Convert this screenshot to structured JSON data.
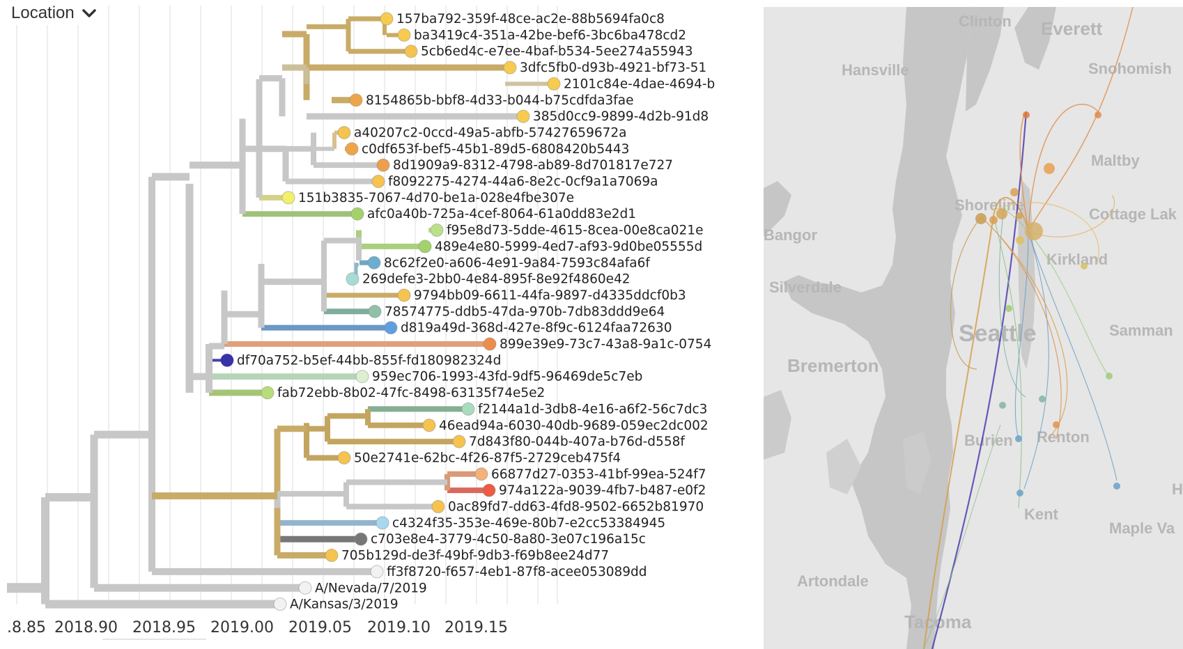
{
  "dropdown": {
    "label": "Location",
    "icon": "chevron-down-icon"
  },
  "axis": {
    "ticks": [
      ".8.85",
      "2018.90",
      "2018.95",
      "2019.00",
      "2019.05",
      "2019.10",
      "2019.15"
    ]
  },
  "leaves": [
    {
      "label": "157ba792-359f-48ce-ac2e-88b5694fa0c8",
      "color": "#f7cb4f"
    },
    {
      "label": "ba3419c4-351a-42be-bef6-3bc6ba478cd2",
      "color": "#f7cb4f"
    },
    {
      "label": "5cb6ed4c-e7ee-4baf-b534-5ee274a55943",
      "color": "#f5c34e"
    },
    {
      "label": "3dfc5fb0-d93b-4921-bf73-51",
      "color": "#f7cb4f"
    },
    {
      "label": "2101c84e-4dae-4694-b",
      "color": "#f7cb4f"
    },
    {
      "label": "8154865b-bbf8-4d33-b044-b75cdfda3fae",
      "color": "#eea548"
    },
    {
      "label": "385d0cc9-9899-4d2b-91d8",
      "color": "#f7cb4f"
    },
    {
      "label": "a40207c2-0ccd-49a5-abfb-57427659672a",
      "color": "#f5c34e"
    },
    {
      "label": "c0df653f-bef5-45b1-89d5-6808420b5443",
      "color": "#eea548"
    },
    {
      "label": "8d1909a9-8312-4798-ab89-8d701817e727",
      "color": "#ee9e4c"
    },
    {
      "label": "f8092275-4274-44a6-8e2c-0cf9a1a7069a",
      "color": "#f5c34e"
    },
    {
      "label": "151b3835-7067-4d70-be1a-028e4fbe307e",
      "color": "#f2ef6a"
    },
    {
      "label": "afc0a40b-725a-4cef-8064-61a0dd83e2d1",
      "color": "#a4d26a"
    },
    {
      "label": "f95e8d73-5dde-4615-8cea-00e8ca021e",
      "color": "#bbe08a"
    },
    {
      "label": "489e4e80-5999-4ed7-af93-9d0be05555d",
      "color": "#a4d26a"
    },
    {
      "label": "8c62f2e0-a606-4e91-9a84-7593c84afa6f",
      "color": "#6aaed0"
    },
    {
      "label": "269defe3-2bb0-4e84-895f-8e92f4860e42",
      "color": "#a6dcd6"
    },
    {
      "label": "9794bb09-6611-44fa-9897-d4335ddcf0b3",
      "color": "#f5c34e"
    },
    {
      "label": "78574775-ddb5-47da-970b-7db83ddd9e64",
      "color": "#8fc1a8"
    },
    {
      "label": "d819a49d-368d-427e-8f9c-6124faa72630",
      "color": "#5d9fe0"
    },
    {
      "label": "899e39e9-73c7-43a8-9a1c-0754",
      "color": "#ee8c4b"
    },
    {
      "label": "df70a752-b5ef-44bb-855f-fd180982324d",
      "color": "#3a32a8"
    },
    {
      "label": "959ec706-1993-43fd-9df5-96469de5c7eb",
      "color": "#dcefd0"
    },
    {
      "label": "fab72ebb-8b02-47fc-8498-63135f74e5e2",
      "color": "#b8dc7a"
    },
    {
      "label": "f2144a1d-3db8-4e16-a6f2-56c7dc3",
      "color": "#a8dcbc"
    },
    {
      "label": "46ead94a-6030-40db-9689-059ec2dc002",
      "color": "#f5c34e"
    },
    {
      "label": "7d843f80-044b-407a-b76d-d558f",
      "color": "#f5c34e"
    },
    {
      "label": "50e2741e-62bc-4f26-87f5-2729ceb475f4",
      "color": "#f5c34e"
    },
    {
      "label": "66877d27-0353-41bf-99ea-524f7",
      "color": "#f4b17a"
    },
    {
      "label": "974a122a-9039-4fb7-b487-e0f2",
      "color": "#ee5a44"
    },
    {
      "label": "0ac89fd7-dd63-4fd8-9502-6652b81970",
      "color": "#f5c34e"
    },
    {
      "label": "c4324f35-353e-469e-80b7-e2cc53384945",
      "color": "#a7d8f0"
    },
    {
      "label": "c703e8e4-3779-4c50-8a80-3e07c196a15c",
      "color": "#777777"
    },
    {
      "label": "705b129d-de3f-49bf-9db3-f69b8ee24d77",
      "color": "#f5c34e"
    },
    {
      "label": "ff3f8720-f657-4eb1-87f8-acee053089dd",
      "color": "#f2f2f2"
    },
    {
      "label": "A/Nevada/7/2019",
      "color": "#f2f2f2"
    },
    {
      "label": "A/Kansas/3/2019",
      "color": "#f2f2f2"
    }
  ],
  "map": {
    "places": [
      "Clinton",
      "Everett",
      "Hansville",
      "Snohomish",
      "Maltby",
      "Shoreline",
      "Cottage Lak",
      "Bangor",
      "Kirkland",
      "Silverdale",
      "Seattle",
      "Samman",
      "Bremerton",
      "Burien",
      "Renton",
      "Kent",
      "Maple Va",
      "Artondale",
      "Tacoma",
      "H"
    ]
  }
}
